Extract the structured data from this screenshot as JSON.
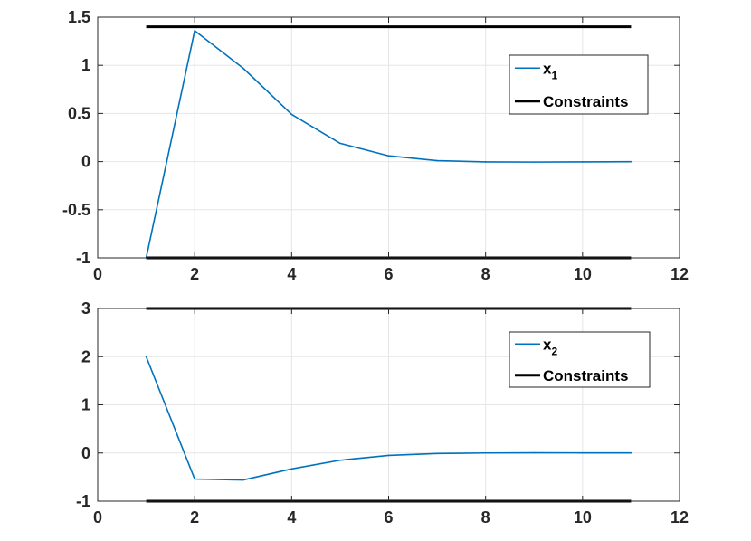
{
  "chart_data": [
    {
      "type": "line",
      "x": [
        1,
        2,
        3,
        4,
        5,
        6,
        7,
        8,
        9,
        10,
        11
      ],
      "series": [
        {
          "name_main": "x",
          "name_sub": "1",
          "values": [
            -1,
            1.36,
            0.97,
            0.49,
            0.19,
            0.06,
            0.01,
            -0.003,
            -0.005,
            -0.003,
            -0.001
          ],
          "color": "#0072BD"
        },
        {
          "name": "Constraints",
          "upper": 1.4,
          "lower": -1,
          "x_range": [
            1,
            11
          ],
          "color": "#000000"
        }
      ],
      "xlim": [
        0,
        12
      ],
      "ylim": [
        -1,
        1.5
      ],
      "xticks": [
        "0",
        "2",
        "4",
        "6",
        "8",
        "10",
        "12"
      ],
      "yticks": [
        "1.5",
        "1",
        "0.5",
        "0",
        "-0.5",
        "-1"
      ],
      "ytick_values": [
        1.5,
        1,
        0.5,
        0,
        -0.5,
        -1
      ],
      "xtick_values": [
        0,
        2,
        4,
        6,
        8,
        10,
        12
      ],
      "grid": true,
      "legend_position": "top-right"
    },
    {
      "type": "line",
      "x": [
        1,
        2,
        3,
        4,
        5,
        6,
        7,
        8,
        9,
        10,
        11
      ],
      "series": [
        {
          "name_main": "x",
          "name_sub": "2",
          "values": [
            2,
            -0.54,
            -0.56,
            -0.33,
            -0.15,
            -0.05,
            -0.01,
            0.0,
            0.003,
            0.002,
            0.001
          ],
          "color": "#0072BD"
        },
        {
          "name": "Constraints",
          "upper": 3,
          "lower": -1,
          "x_range": [
            1,
            11
          ],
          "color": "#000000"
        }
      ],
      "xlim": [
        0,
        12
      ],
      "ylim": [
        -1,
        3
      ],
      "xticks": [
        "0",
        "2",
        "4",
        "6",
        "8",
        "10",
        "12"
      ],
      "yticks": [
        "3",
        "2",
        "1",
        "0",
        "-1"
      ],
      "ytick_values": [
        3,
        2,
        1,
        0,
        -1
      ],
      "xtick_values": [
        0,
        2,
        4,
        6,
        8,
        10,
        12
      ],
      "grid": true,
      "legend_position": "top-right"
    }
  ]
}
